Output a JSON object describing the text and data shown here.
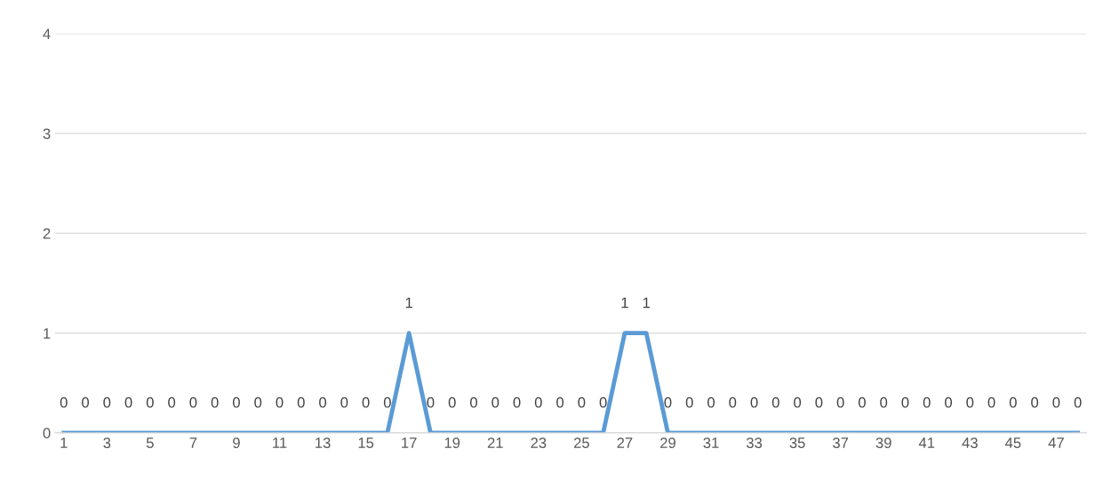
{
  "chart_data": {
    "type": "line",
    "categories": [
      "1",
      null,
      "3",
      null,
      "5",
      null,
      "7",
      null,
      "9",
      null,
      "11",
      null,
      "13",
      null,
      "15",
      null,
      "17",
      null,
      "19",
      null,
      "21",
      null,
      "23",
      null,
      "25",
      null,
      "27",
      null,
      "29",
      null,
      "31",
      null,
      "33",
      null,
      "35",
      null,
      "37",
      null,
      "39",
      null,
      "41",
      null,
      "43",
      null,
      "45",
      null,
      "47",
      null
    ],
    "series": [
      {
        "color": "#5b9bd5",
        "values": [
          0,
          0,
          0,
          0,
          0,
          0,
          0,
          0,
          0,
          0,
          0,
          0,
          0,
          0,
          0,
          0,
          1,
          0,
          0,
          0,
          0,
          0,
          0,
          0,
          0,
          0,
          1,
          1,
          0,
          0,
          0,
          0,
          0,
          0,
          0,
          0,
          0,
          0,
          0,
          0,
          0,
          0,
          0,
          0,
          0,
          0,
          0,
          0
        ]
      }
    ],
    "ylim": [
      0,
      4
    ],
    "yticks": [
      0,
      1,
      2,
      3,
      4
    ],
    "grid": "y",
    "legend": false,
    "marker": "none",
    "line_style": "solid",
    "data_labels": true
  }
}
